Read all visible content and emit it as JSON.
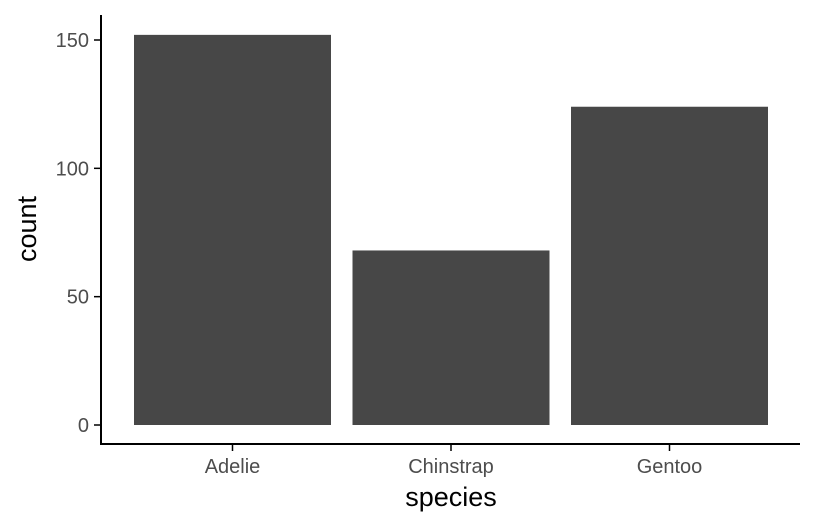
{
  "chart_data": {
    "type": "bar",
    "title": "",
    "xlabel": "species",
    "ylabel": "count",
    "categories": [
      "Adelie",
      "Chinstrap",
      "Gentoo"
    ],
    "values": [
      152,
      68,
      124
    ],
    "ylim": [
      0,
      152
    ],
    "yticks": [
      0,
      50,
      100,
      150
    ],
    "ytick_labels": [
      "0",
      "50",
      "100",
      "150"
    ],
    "grid": false,
    "legend": "none",
    "colors": {
      "bar": "#474747",
      "axis": "#000000",
      "tick_label": "#4d4d4d",
      "background": "#ffffff"
    }
  }
}
